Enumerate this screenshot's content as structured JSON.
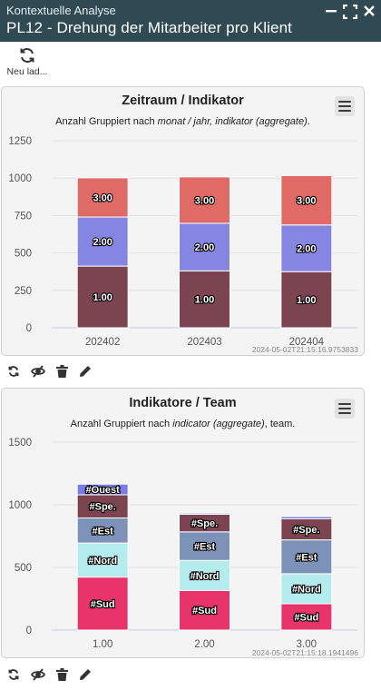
{
  "window": {
    "subtitle": "Kontextuelle Analyse",
    "title": "PL12 - Drehung der Mitarbeiter pro Klient",
    "controls": [
      "minimize-icon",
      "maximize-icon",
      "close-icon"
    ]
  },
  "toolbar": {
    "reload_label": "Neu lad..."
  },
  "chart1": {
    "title": "Zeitraum / Indikator",
    "subtitle_prefix": "Anzahl Gruppiert nach ",
    "subtitle_italic": "monat / jahr, indikator (aggregate)",
    "subtitle_suffix": ".",
    "timestamp": "2024-05-02T21:15:16.9753833"
  },
  "chart2": {
    "title": "Indikatore / Team",
    "subtitle_prefix": "Anzahl Gruppiert nach ",
    "subtitle_italic": "indicator (aggregate)",
    "subtitle_suffix": ", team.",
    "timestamp": "2024-05-02T21:15:18.1941496"
  },
  "chart_data": [
    {
      "type": "bar",
      "stacked": true,
      "title": "Zeitraum / Indikator",
      "categories": [
        "202402",
        "202403",
        "202404"
      ],
      "ylim": [
        0,
        1250
      ],
      "yticks": [
        0,
        250,
        500,
        750,
        1000,
        1250
      ],
      "grid": true,
      "series": [
        {
          "name": "1.00",
          "color": "#7b4450",
          "values": [
            412,
            380,
            375
          ]
        },
        {
          "name": "2.00",
          "color": "#8585e2",
          "values": [
            328,
            318,
            312
          ]
        },
        {
          "name": "3.00",
          "color": "#e06a66",
          "values": [
            262,
            310,
            330
          ]
        }
      ]
    },
    {
      "type": "bar",
      "stacked": true,
      "title": "Indikatore / Team",
      "categories": [
        "1.00",
        "2.00",
        "3.00"
      ],
      "ylim": [
        0,
        1500
      ],
      "yticks": [
        0,
        500,
        1000,
        1500
      ],
      "grid": true,
      "series": [
        {
          "name": "#Sud",
          "color": "#e8336b",
          "values": [
            423,
            316,
            210
          ]
        },
        {
          "name": "#Nord",
          "color": "#b4ecee",
          "values": [
            272,
            240,
            240
          ]
        },
        {
          "name": "#Est",
          "color": "#7d92b9",
          "values": [
            200,
            228,
            270
          ]
        },
        {
          "name": "#Spe.",
          "color": "#7b4450",
          "values": [
            185,
            140,
            168
          ]
        },
        {
          "name": "#Ouest",
          "color": "#7b7be8",
          "values": [
            85,
            9,
            18
          ]
        }
      ]
    }
  ]
}
